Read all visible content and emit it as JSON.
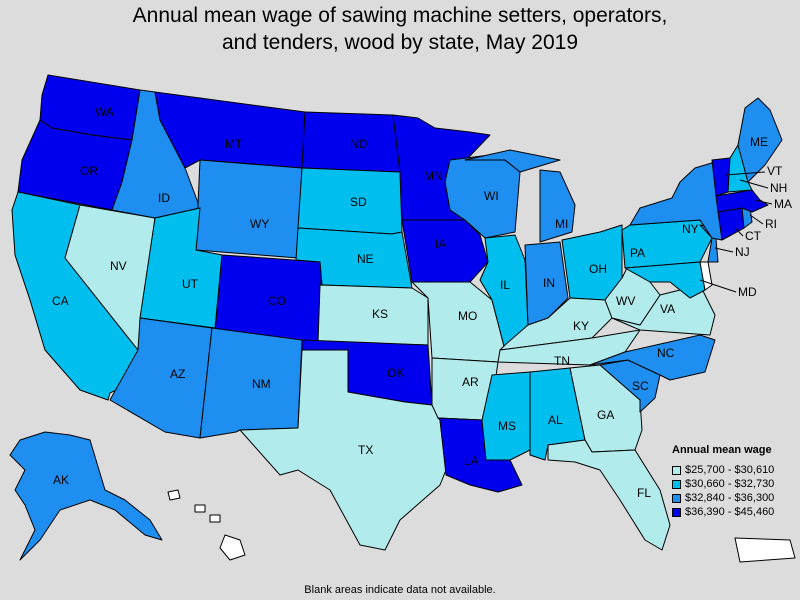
{
  "title": {
    "line1": "Annual mean wage of sawing machine setters, operators,",
    "line2": "and tenders, wood by state, May 2019"
  },
  "colors": {
    "tier1": "#b2ebeb",
    "tier2": "#00bfef",
    "tier3": "#1e8ff0",
    "tier4": "#0000ee",
    "no_data": "#ffffff",
    "background": "#dcdcdc"
  },
  "legend": {
    "title": "Annual mean wage",
    "items": [
      {
        "label": "$25,700 - $30,610",
        "tier": "tier1"
      },
      {
        "label": "$30,660 - $32,730",
        "tier": "tier2"
      },
      {
        "label": "$32,840 - $36,300",
        "tier": "tier3"
      },
      {
        "label": "$36,390 - $45,460",
        "tier": "tier4"
      }
    ]
  },
  "states": {
    "WA": "tier4",
    "OR": "tier4",
    "CA": "tier2",
    "NV": "tier1",
    "ID": "tier3",
    "MT": "tier4",
    "WY": "tier3",
    "UT": "tier2",
    "CO": "tier4",
    "AZ": "tier3",
    "NM": "tier3",
    "ND": "tier4",
    "SD": "tier2",
    "NE": "tier2",
    "KS": "tier1",
    "OK": "tier4",
    "TX": "tier1",
    "MN": "tier4",
    "IA": "tier4",
    "MO": "tier1",
    "AR": "tier1",
    "LA": "tier4",
    "WI": "tier3",
    "IL": "tier2",
    "MS": "tier2",
    "MI": "tier3",
    "IN": "tier3",
    "OH": "tier2",
    "KY": "tier1",
    "TN": "tier1",
    "AL": "tier2",
    "GA": "tier1",
    "FL": "tier1",
    "SC": "tier3",
    "NC": "tier3",
    "VA": "tier1",
    "WV": "tier1",
    "PA": "tier2",
    "NY": "tier3",
    "VT": "tier4",
    "NH": "tier2",
    "ME": "tier3",
    "MA": "tier4",
    "CT": "tier4",
    "RI": "tier3",
    "NJ": "tier3",
    "DE": "no_data",
    "MD": "tier2",
    "AK": "tier3",
    "HI": "no_data",
    "PR": "no_data"
  },
  "footnote": "Blank areas indicate data not available."
}
